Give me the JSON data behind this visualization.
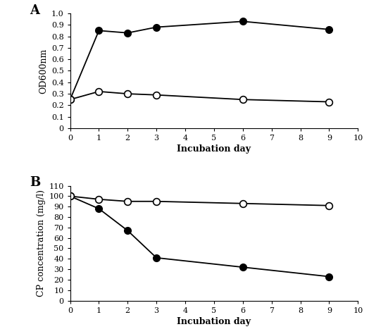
{
  "panel_A": {
    "filled_x": [
      0,
      1,
      2,
      3,
      6,
      9
    ],
    "filled_y": [
      0.25,
      0.85,
      0.83,
      0.88,
      0.93,
      0.86
    ],
    "open_x": [
      0,
      1,
      2,
      3,
      6,
      9
    ],
    "open_y": [
      0.25,
      0.32,
      0.3,
      0.29,
      0.25,
      0.23
    ],
    "ylabel": "OD600nm",
    "xlabel": "Incubation day",
    "ylim": [
      0,
      1.0
    ],
    "ytick_vals": [
      0,
      0.1,
      0.2,
      0.3,
      0.4,
      0.5,
      0.6,
      0.7,
      0.8,
      0.9,
      1.0
    ],
    "ytick_labels": [
      "0",
      "0.1",
      "0.2",
      "0.3",
      "0.4",
      "0.5",
      "0.6",
      "0.7",
      "0.8",
      "0.9",
      "1.0"
    ],
    "xlim": [
      0,
      10
    ],
    "xtick_vals": [
      0,
      1,
      2,
      3,
      4,
      5,
      6,
      7,
      8,
      9,
      10
    ],
    "xtick_labels": [
      "0",
      "1",
      "2",
      "3",
      "4",
      "5",
      "6",
      "7",
      "8",
      "9",
      "10"
    ],
    "label": "A"
  },
  "panel_B": {
    "filled_x": [
      0,
      1,
      2,
      3,
      6,
      9
    ],
    "filled_y": [
      100,
      88,
      67,
      41,
      32,
      23
    ],
    "open_x": [
      0,
      1,
      2,
      3,
      6,
      9
    ],
    "open_y": [
      100,
      97,
      95,
      95,
      93,
      91
    ],
    "ylabel": "CP concentration (mg/l)",
    "xlabel": "Incubation day",
    "ylim": [
      0,
      110
    ],
    "ytick_vals": [
      0,
      10,
      20,
      30,
      40,
      50,
      60,
      70,
      80,
      90,
      100,
      110
    ],
    "ytick_labels": [
      "0",
      "10",
      "20",
      "30",
      "40",
      "50",
      "60",
      "70",
      "80",
      "90",
      "100",
      "110"
    ],
    "xlim": [
      0,
      10
    ],
    "xtick_vals": [
      0,
      1,
      2,
      3,
      4,
      5,
      6,
      7,
      8,
      9,
      10
    ],
    "xtick_labels": [
      "0",
      "1",
      "2",
      "3",
      "4",
      "5",
      "6",
      "7",
      "8",
      "9",
      "10"
    ],
    "label": "B"
  },
  "line_color": "#000000",
  "marker_size": 7,
  "linewidth": 1.3,
  "font_size_tick": 8,
  "font_size_label": 9,
  "font_size_panel": 13
}
